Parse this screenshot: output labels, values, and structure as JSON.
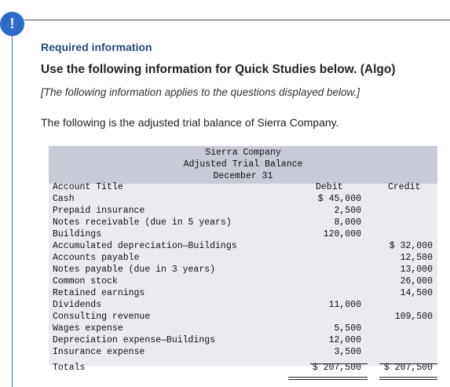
{
  "alert_icon": "!",
  "required_label": "Required information",
  "heading": "Use the following information for Quick Studies below. (Algo)",
  "note": "[The following information applies to the questions displayed below.]",
  "intro": "The following is the adjusted trial balance of Sierra Company.",
  "table": {
    "company": "Sierra Company",
    "statement": "Adjusted Trial Balance",
    "date": "December 31",
    "col_title": "Account Title",
    "col_debit": "Debit",
    "col_credit": "Credit",
    "rows": [
      {
        "title": "Cash",
        "debit": "$ 45,000",
        "credit": ""
      },
      {
        "title": "Prepaid insurance",
        "debit": "2,500",
        "credit": ""
      },
      {
        "title": "Notes receivable (due in 5 years)",
        "debit": "8,000",
        "credit": ""
      },
      {
        "title": "Buildings",
        "debit": "120,000",
        "credit": ""
      },
      {
        "title": "Accumulated depreciation—Buildings",
        "debit": "",
        "credit": "$ 32,000"
      },
      {
        "title": "Accounts payable",
        "debit": "",
        "credit": "12,500"
      },
      {
        "title": "Notes payable (due in 3 years)",
        "debit": "",
        "credit": "13,000"
      },
      {
        "title": "Common stock",
        "debit": "",
        "credit": "26,000"
      },
      {
        "title": "Retained earnings",
        "debit": "",
        "credit": "14,500"
      },
      {
        "title": "Dividends",
        "debit": "11,000",
        "credit": ""
      },
      {
        "title": "Consulting revenue",
        "debit": "",
        "credit": "109,500"
      },
      {
        "title": "Wages expense",
        "debit": "5,500",
        "credit": ""
      },
      {
        "title": "Depreciation expense—Buildings",
        "debit": "12,000",
        "credit": ""
      },
      {
        "title": "Insurance expense",
        "debit": "3,500",
        "credit": ""
      }
    ],
    "totals": {
      "title": "Totals",
      "debit": "$ 207,500",
      "credit": "$ 207,500"
    }
  }
}
